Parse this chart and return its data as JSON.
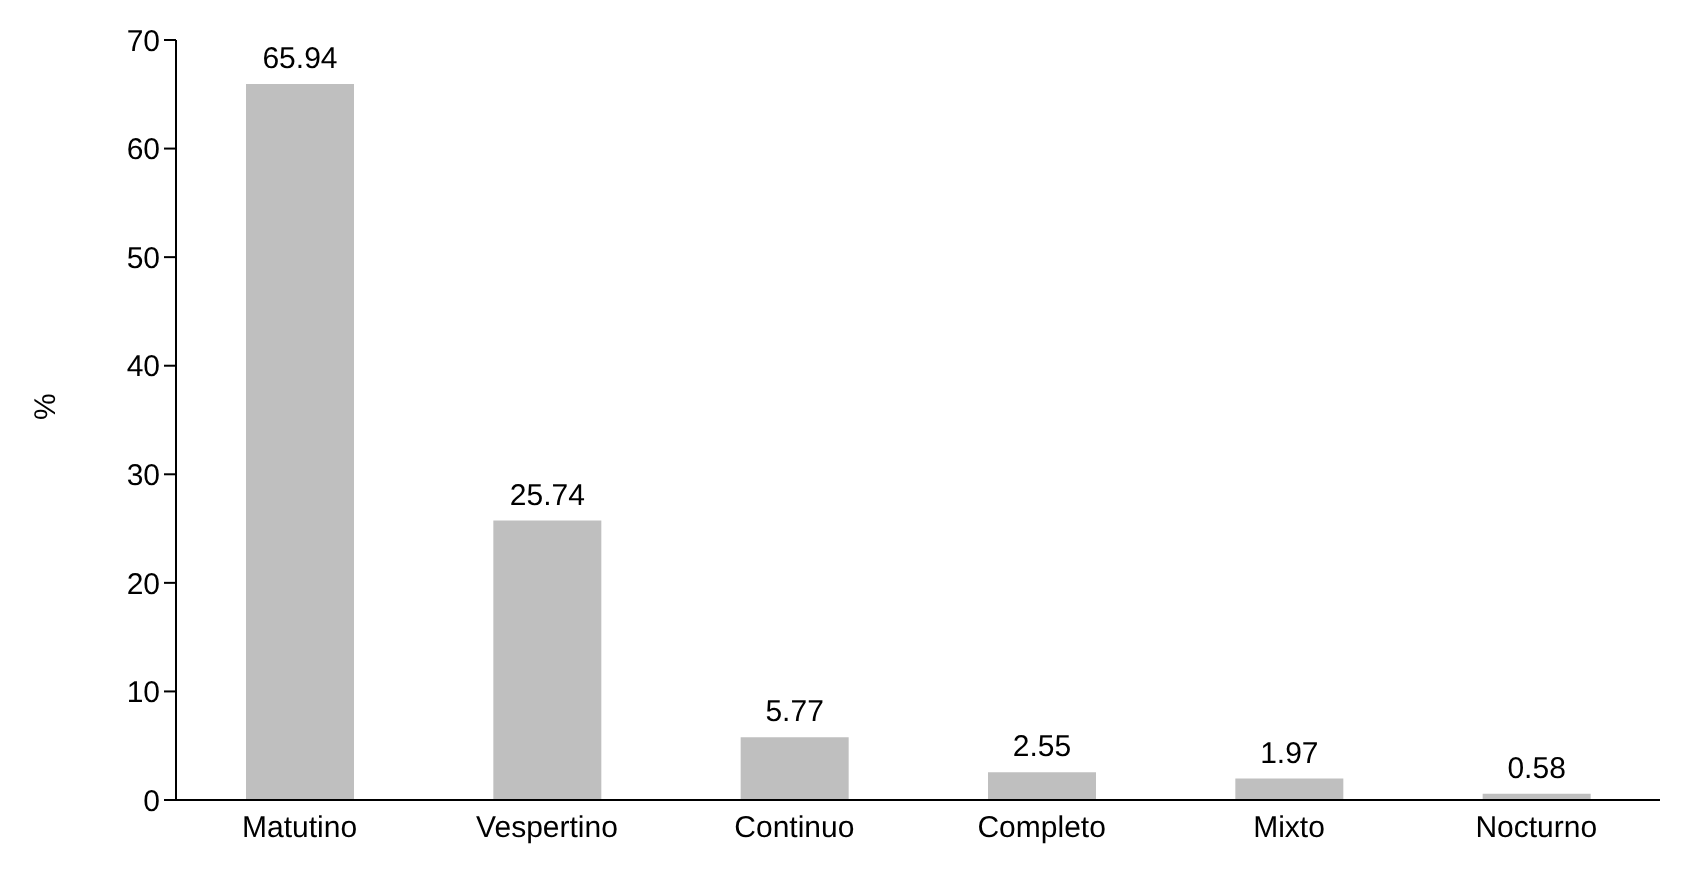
{
  "chart_data": {
    "type": "bar",
    "ylabel": "%",
    "categories": [
      "Matutino",
      "Vespertino",
      "Continuo",
      "Completo",
      "Mixto",
      "Nocturno"
    ],
    "values": [
      65.94,
      25.74,
      5.77,
      2.55,
      1.97,
      0.58
    ],
    "color": "#bfbfbf",
    "ylim": [
      0,
      70
    ],
    "yticks": [
      0,
      10,
      20,
      30,
      40,
      50,
      60,
      70
    ],
    "data_labels": true,
    "grid": false,
    "legend": false
  }
}
